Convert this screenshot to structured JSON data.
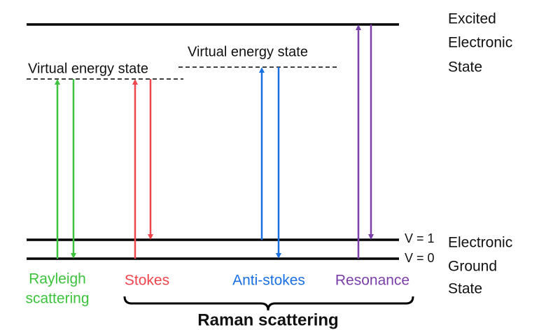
{
  "excited_state": [
    "Excited",
    "Electronic",
    "State"
  ],
  "ground_state": [
    "Electronic",
    "Ground",
    "State"
  ],
  "virtual_state_left": "Virtual energy state",
  "virtual_state_right": "Virtual energy state",
  "levels": [
    "V = 1",
    "V = 0"
  ],
  "processes": [
    {
      "label": [
        "Rayleigh",
        "scattering"
      ],
      "color": "#3cc23c"
    },
    {
      "label": [
        "Stokes"
      ],
      "color": "#f0454d"
    },
    {
      "label": [
        "Anti-stokes"
      ],
      "color": "#1a70e3"
    },
    {
      "label": [
        "Resonance"
      ],
      "color": "#7b3fa9"
    }
  ],
  "bracket_label": "Raman scattering"
}
